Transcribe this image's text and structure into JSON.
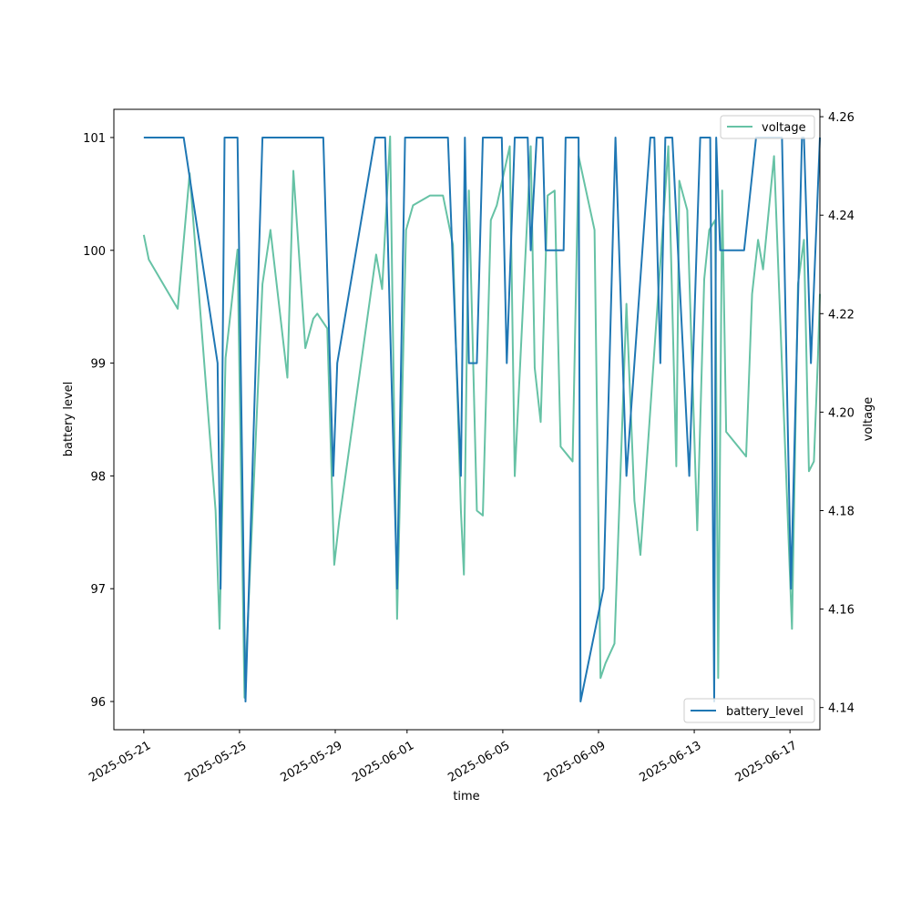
{
  "chart_data": {
    "type": "line",
    "title": "",
    "xlabel": "time",
    "ylabel_left": "battery level",
    "ylabel_right": "voltage",
    "x_ticks": [
      "2025-05-21",
      "2025-05-25",
      "2025-05-29",
      "2025-06-01",
      "2025-06-05",
      "2025-06-09",
      "2025-06-13",
      "2025-06-17"
    ],
    "xlim": [
      "2025-05-19T18:00",
      "2025-06-18T06:00"
    ],
    "y_left_ticks": [
      96,
      97,
      98,
      99,
      100,
      101
    ],
    "y_left_lim": [
      95.75,
      101.25
    ],
    "y_right_ticks": [
      4.14,
      4.16,
      4.18,
      4.2,
      4.22,
      4.24,
      4.26
    ],
    "y_right_lim": [
      4.1355,
      4.2615
    ],
    "grid": false,
    "series": [
      {
        "name": "battery_level",
        "axis": "left",
        "color": "#1f77b4",
        "legend_position": "lower-right",
        "points": [
          [
            "2025-05-21T00:00",
            101
          ],
          [
            "2025-05-22T16:00",
            101
          ],
          [
            "2025-05-24T02:00",
            99
          ],
          [
            "2025-05-24T05:00",
            97
          ],
          [
            "2025-05-24T09:00",
            101
          ],
          [
            "2025-05-24T22:00",
            101
          ],
          [
            "2025-05-25T06:00",
            96
          ],
          [
            "2025-05-25T23:00",
            101
          ],
          [
            "2025-05-28T12:00",
            101
          ],
          [
            "2025-05-28T22:00",
            98
          ],
          [
            "2025-05-29T02:00",
            99
          ],
          [
            "2025-05-30T16:00",
            101
          ],
          [
            "2025-05-31T02:00",
            101
          ],
          [
            "2025-05-31T14:00",
            97
          ],
          [
            "2025-05-31T22:00",
            101
          ],
          [
            "2025-06-02T17:00",
            101
          ],
          [
            "2025-06-03T06:00",
            98
          ],
          [
            "2025-06-03T10:00",
            101
          ],
          [
            "2025-06-03T14:00",
            99
          ],
          [
            "2025-06-03T22:00",
            99
          ],
          [
            "2025-06-04T04:00",
            101
          ],
          [
            "2025-06-04T23:00",
            101
          ],
          [
            "2025-06-05T04:00",
            99
          ],
          [
            "2025-06-05T12:00",
            101
          ],
          [
            "2025-06-06T01:00",
            101
          ],
          [
            "2025-06-06T04:00",
            100
          ],
          [
            "2025-06-06T10:00",
            101
          ],
          [
            "2025-06-06T16:00",
            101
          ],
          [
            "2025-06-06T19:00",
            100
          ],
          [
            "2025-06-07T13:00",
            100
          ],
          [
            "2025-06-07T15:00",
            101
          ],
          [
            "2025-06-08T04:00",
            101
          ],
          [
            "2025-06-08T06:00",
            96
          ],
          [
            "2025-06-09T05:00",
            97
          ],
          [
            "2025-06-09T17:00",
            101
          ],
          [
            "2025-06-10T04:00",
            98
          ],
          [
            "2025-06-11T04:00",
            101
          ],
          [
            "2025-06-11T08:00",
            101
          ],
          [
            "2025-06-11T14:00",
            99
          ],
          [
            "2025-06-11T19:00",
            101
          ],
          [
            "2025-06-12T02:00",
            101
          ],
          [
            "2025-06-12T19:00",
            98
          ],
          [
            "2025-06-13T06:00",
            101
          ],
          [
            "2025-06-13T16:00",
            101
          ],
          [
            "2025-06-13T20:00",
            96
          ],
          [
            "2025-06-13T22:00",
            101
          ],
          [
            "2025-06-14T02:00",
            100
          ],
          [
            "2025-06-15T02:00",
            100
          ],
          [
            "2025-06-15T14:00",
            101
          ],
          [
            "2025-06-16T16:00",
            101
          ],
          [
            "2025-06-17T01:00",
            97
          ],
          [
            "2025-06-17T12:00",
            101
          ],
          [
            "2025-06-17T14:00",
            101
          ],
          [
            "2025-06-17T21:00",
            99
          ],
          [
            "2025-06-18T06:00",
            101
          ]
        ]
      },
      {
        "name": "voltage",
        "axis": "right",
        "color": "#66c2a5",
        "legend_position": "upper-right",
        "points": [
          [
            "2025-05-21T00:00",
            4.236
          ],
          [
            "2025-05-21T05:00",
            4.231
          ],
          [
            "2025-05-22T10:00",
            4.221
          ],
          [
            "2025-05-22T22:00",
            4.2485
          ],
          [
            "2025-05-24T00:00",
            4.18
          ],
          [
            "2025-05-24T04:00",
            4.156
          ],
          [
            "2025-05-24T10:00",
            4.211
          ],
          [
            "2025-05-24T22:00",
            4.233
          ],
          [
            "2025-05-25T05:00",
            4.142
          ],
          [
            "2025-05-25T23:00",
            4.226
          ],
          [
            "2025-05-26T07:00",
            4.237
          ],
          [
            "2025-05-27T00:00",
            4.207
          ],
          [
            "2025-05-27T06:00",
            4.249
          ],
          [
            "2025-05-27T18:00",
            4.213
          ],
          [
            "2025-05-28T02:00",
            4.219
          ],
          [
            "2025-05-28T06:00",
            4.22
          ],
          [
            "2025-05-28T16:00",
            4.217
          ],
          [
            "2025-05-28T23:00",
            4.169
          ],
          [
            "2025-05-29T04:00",
            4.178
          ],
          [
            "2025-05-30T17:00",
            4.232
          ],
          [
            "2025-05-30T23:00",
            4.225
          ],
          [
            "2025-05-31T07:00",
            4.256
          ],
          [
            "2025-05-31T14:00",
            4.158
          ],
          [
            "2025-05-31T23:00",
            4.237
          ],
          [
            "2025-06-01T06:00",
            4.242
          ],
          [
            "2025-06-01T23:00",
            4.244
          ],
          [
            "2025-06-02T12:00",
            4.244
          ],
          [
            "2025-06-02T22:00",
            4.234
          ],
          [
            "2025-06-03T06:00",
            4.18
          ],
          [
            "2025-06-03T09:00",
            4.167
          ],
          [
            "2025-06-03T14:00",
            4.245
          ],
          [
            "2025-06-03T22:00",
            4.18
          ],
          [
            "2025-06-04T04:00",
            4.179
          ],
          [
            "2025-06-04T12:00",
            4.239
          ],
          [
            "2025-06-04T18:00",
            4.242
          ],
          [
            "2025-06-05T07:00",
            4.254
          ],
          [
            "2025-06-05T12:00",
            4.187
          ],
          [
            "2025-06-06T04:00",
            4.254
          ],
          [
            "2025-06-06T08:00",
            4.209
          ],
          [
            "2025-06-06T14:00",
            4.198
          ],
          [
            "2025-06-06T21:00",
            4.244
          ],
          [
            "2025-06-07T04:00",
            4.245
          ],
          [
            "2025-06-07T10:00",
            4.193
          ],
          [
            "2025-06-07T22:00",
            4.19
          ],
          [
            "2025-06-08T04:00",
            4.252
          ],
          [
            "2025-06-08T20:00",
            4.237
          ],
          [
            "2025-06-09T02:00",
            4.146
          ],
          [
            "2025-06-09T07:00",
            4.149
          ],
          [
            "2025-06-09T16:00",
            4.153
          ],
          [
            "2025-06-10T04:00",
            4.222
          ],
          [
            "2025-06-10T12:00",
            4.182
          ],
          [
            "2025-06-10T18:00",
            4.171
          ],
          [
            "2025-06-11T22:00",
            4.254
          ],
          [
            "2025-06-12T06:00",
            4.189
          ],
          [
            "2025-06-12T09:00",
            4.247
          ],
          [
            "2025-06-12T17:00",
            4.241
          ],
          [
            "2025-06-13T03:00",
            4.176
          ],
          [
            "2025-06-13T10:00",
            4.227
          ],
          [
            "2025-06-13T15:00",
            4.237
          ],
          [
            "2025-06-13T21:00",
            4.239
          ],
          [
            "2025-06-14T00:00",
            4.146
          ],
          [
            "2025-06-14T04:00",
            4.245
          ],
          [
            "2025-06-14T08:00",
            4.196
          ],
          [
            "2025-06-15T04:00",
            4.191
          ],
          [
            "2025-06-15T10:00",
            4.224
          ],
          [
            "2025-06-15T16:00",
            4.235
          ],
          [
            "2025-06-15T21:00",
            4.229
          ],
          [
            "2025-06-16T08:00",
            4.252
          ],
          [
            "2025-06-17T02:00",
            4.156
          ],
          [
            "2025-06-17T08:00",
            4.226
          ],
          [
            "2025-06-17T14:00",
            4.235
          ],
          [
            "2025-06-17T19:00",
            4.188
          ],
          [
            "2025-06-18T00:00",
            4.19
          ],
          [
            "2025-06-18T04:00",
            4.211
          ],
          [
            "2025-06-18T06:00",
            4.224
          ]
        ]
      }
    ]
  }
}
